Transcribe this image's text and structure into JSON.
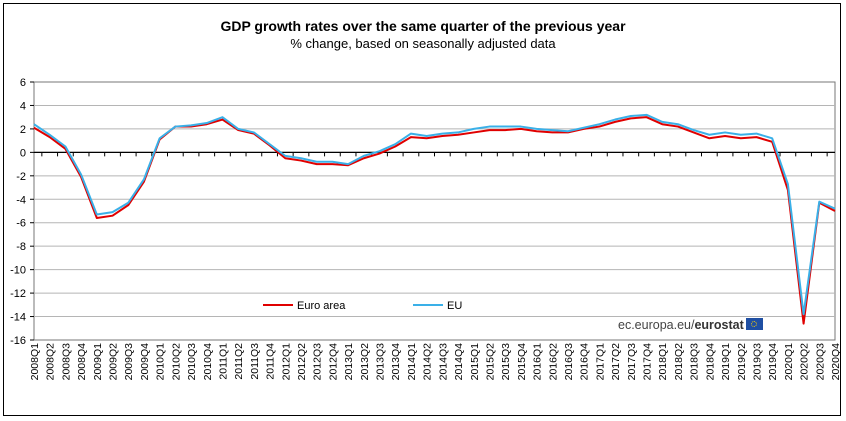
{
  "chart_data": {
    "type": "line",
    "title": "GDP growth rates over the same quarter of the previous year",
    "subtitle": "% change, based on seasonally adjusted data",
    "xlabel": "",
    "ylabel": "",
    "ylim": [
      -16,
      6
    ],
    "yticks": [
      6,
      4,
      2,
      0,
      -2,
      -4,
      -6,
      -8,
      -10,
      -12,
      -14,
      -16
    ],
    "grid": true,
    "legend_position": "bottom-left",
    "categories": [
      "2008Q1",
      "2008Q2",
      "2008Q3",
      "2008Q4",
      "2009Q1",
      "2009Q2",
      "2009Q3",
      "2009Q4",
      "2010Q1",
      "2010Q2",
      "2010Q3",
      "2010Q4",
      "2011Q1",
      "2011Q2",
      "2011Q3",
      "2011Q4",
      "2012Q1",
      "2012Q2",
      "2012Q3",
      "2012Q4",
      "2013Q1",
      "2013Q2",
      "2013Q3",
      "2013Q4",
      "2014Q1",
      "2014Q2",
      "2014Q3",
      "2014Q4",
      "2015Q1",
      "2015Q2",
      "2015Q3",
      "2015Q4",
      "2016Q1",
      "2016Q2",
      "2016Q3",
      "2016Q4",
      "2017Q1",
      "2017Q2",
      "2017Q3",
      "2017Q4",
      "2018Q1",
      "2018Q2",
      "2018Q3",
      "2018Q4",
      "2019Q1",
      "2019Q2",
      "2019Q3",
      "2019Q4",
      "2020Q1",
      "2020Q2",
      "2020Q3",
      "2020Q4"
    ],
    "series": [
      {
        "name": "Euro area",
        "color": "#e00000",
        "values": [
          2.1,
          1.3,
          0.3,
          -2.1,
          -5.6,
          -5.4,
          -4.5,
          -2.5,
          1.1,
          2.2,
          2.2,
          2.4,
          2.8,
          1.9,
          1.6,
          0.6,
          -0.5,
          -0.7,
          -1.0,
          -1.0,
          -1.1,
          -0.5,
          -0.1,
          0.5,
          1.3,
          1.2,
          1.4,
          1.5,
          1.7,
          1.9,
          1.9,
          2.0,
          1.8,
          1.7,
          1.7,
          2.0,
          2.2,
          2.6,
          2.9,
          3.0,
          2.4,
          2.2,
          1.7,
          1.2,
          1.4,
          1.2,
          1.3,
          0.9,
          -3.2,
          -14.6,
          -4.3,
          -5.0
        ]
      },
      {
        "name": "EU",
        "color": "#3ab0e8",
        "values": [
          2.4,
          1.5,
          0.5,
          -1.9,
          -5.3,
          -5.1,
          -4.3,
          -2.3,
          1.2,
          2.2,
          2.3,
          2.5,
          3.0,
          2.0,
          1.7,
          0.7,
          -0.3,
          -0.5,
          -0.8,
          -0.8,
          -1.0,
          -0.3,
          0.1,
          0.7,
          1.6,
          1.4,
          1.6,
          1.7,
          2.0,
          2.2,
          2.2,
          2.2,
          2.0,
          1.9,
          1.8,
          2.1,
          2.4,
          2.8,
          3.1,
          3.2,
          2.6,
          2.4,
          1.9,
          1.5,
          1.7,
          1.5,
          1.6,
          1.2,
          -2.7,
          -13.8,
          -4.2,
          -4.8
        ]
      }
    ]
  },
  "credit": {
    "text_plain": "ec.europa.eu/",
    "text_bold": "eurostat"
  }
}
